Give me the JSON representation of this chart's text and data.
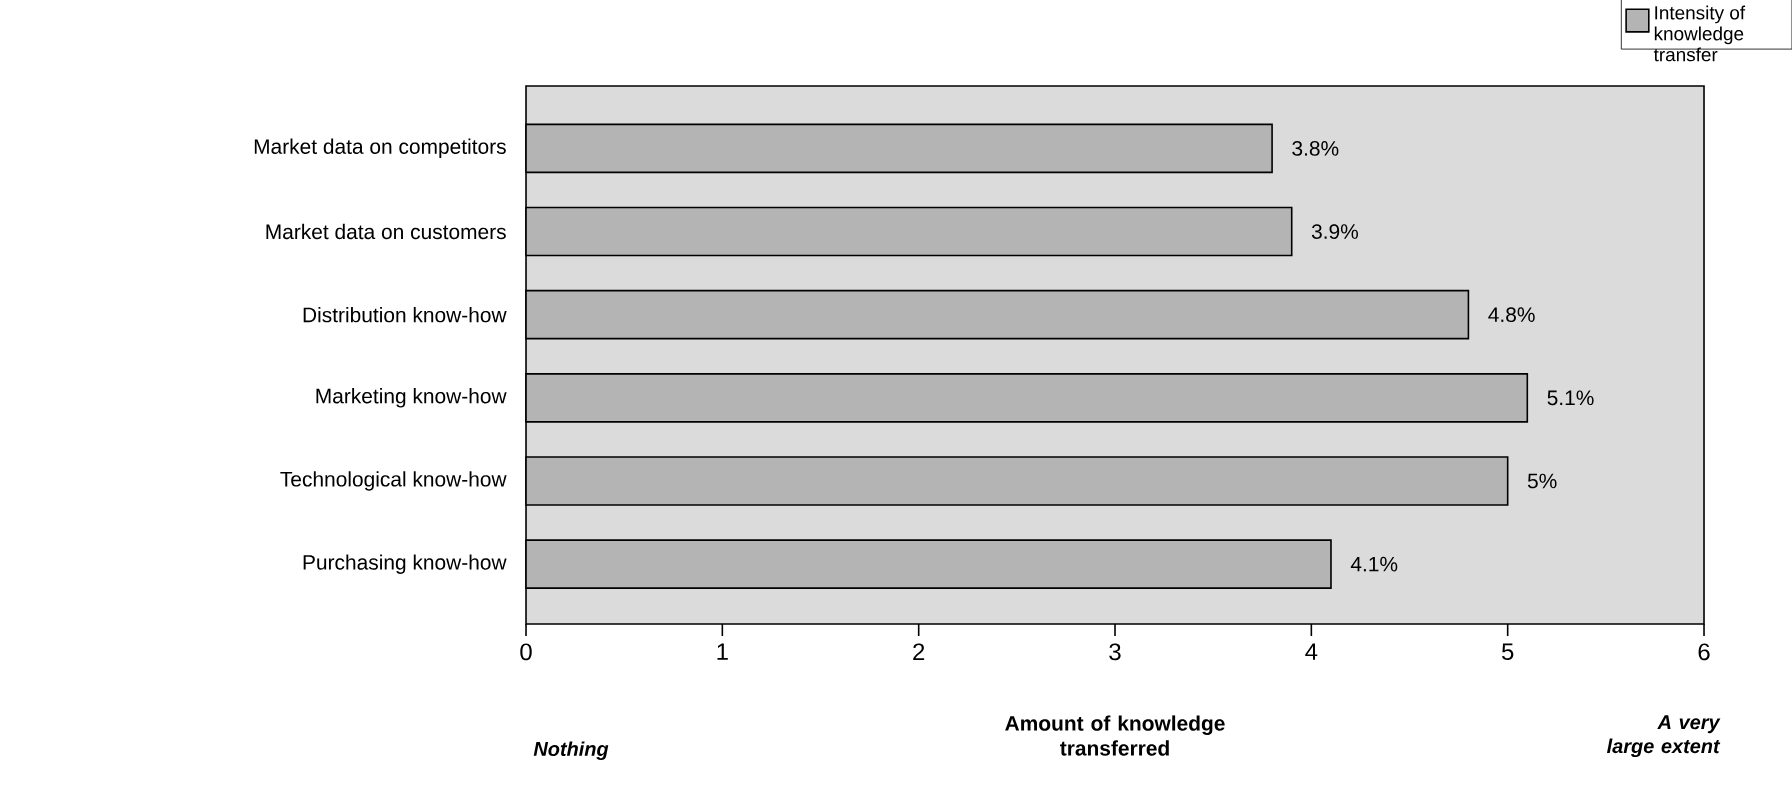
{
  "chart_data": {
    "type": "bar",
    "orientation": "horizontal",
    "categories": [
      "Market data on competitors",
      "Market data on customers",
      "Distribution know-how",
      "Marketing  know-how",
      "Technological  know-how",
      "Purchasing know-how"
    ],
    "series": [
      {
        "name": "Intensity of knowledge transfer",
        "color": "#b4b4b4",
        "values": [
          3.8,
          3.9,
          4.8,
          5.1,
          5,
          4.1
        ],
        "value_labels": [
          "3.8%",
          "3.9%",
          "4.8%",
          "5.1%",
          "5%",
          "4.1%"
        ]
      }
    ],
    "xlabel": "Amount of knowledge transferred",
    "annotations": [
      "Nothing",
      "A very large extent"
    ],
    "xlim": [
      0,
      6
    ],
    "xticks": [
      0,
      1,
      2,
      3,
      4,
      5,
      6
    ],
    "legend": "top right",
    "grid": false
  }
}
